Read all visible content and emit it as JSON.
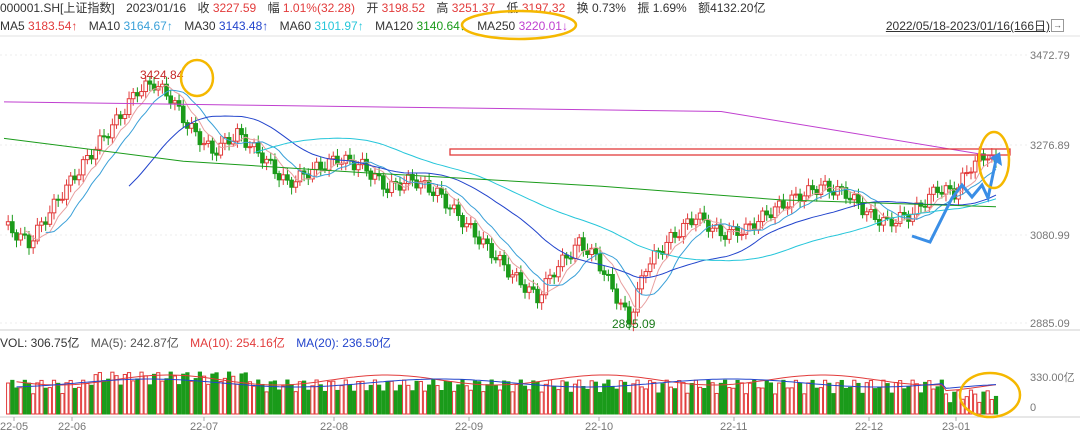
{
  "header": {
    "code": "000001.SH[上证指数]",
    "date": "2023/01/16",
    "close_label": "收",
    "close_value": "3227.59",
    "change_label": "幅",
    "change_value": "1.01%(32.28)",
    "open_label": "开",
    "open_value": "3198.52",
    "high_label": "高",
    "high_value": "3251.37",
    "low_label": "低",
    "low_value": "3197.32",
    "turnover_label": "换",
    "turnover_value": "0.73%",
    "amplitude_label": "振",
    "amplitude_value": "1.69%",
    "amount_label": "额",
    "amount_value": "4132.20亿"
  },
  "ma": [
    {
      "label": "MA5",
      "value": "3183.54↑",
      "color": "#e23b3b"
    },
    {
      "label": "MA10",
      "value": "3164.67↑",
      "color": "#3aa0d8"
    },
    {
      "label": "MA30",
      "value": "3143.48↑",
      "color": "#2244cc"
    },
    {
      "label": "MA60",
      "value": "3101.97↑",
      "color": "#26c6da"
    },
    {
      "label": "MA120",
      "value": "3140.64↓",
      "color": "#1a9b1a"
    },
    {
      "label": "MA250",
      "value": "3220.01↓",
      "color": "#c040d0"
    }
  ],
  "range_text": "2022/05/18-2023/01/16(166日)",
  "range_arrow": "→",
  "price_axis": [
    "3472.79",
    "3276.89",
    "3080.99",
    "2885.09"
  ],
  "annotations": {
    "high": "3424.84",
    "low": "2885.09"
  },
  "volume": {
    "label": "VOL: 306.75亿",
    "ma5": "MA(5): 242.87亿",
    "ma10": "MA(10): 254.16亿",
    "ma20": "MA(20): 236.50亿",
    "axis": [
      "330.00亿",
      "0"
    ]
  },
  "months": [
    "22-05",
    "22-06",
    "22-07",
    "22-08",
    "22-09",
    "22-10",
    "22-11",
    "22-12",
    "23-01"
  ],
  "colors": {
    "up": "#e23b3b",
    "down": "#1a9b1a",
    "highlight": "#f5b800",
    "arrow": "#3a8ee6"
  },
  "chart_data": {
    "type": "candlestick",
    "ma250_path": [
      [
        0,
        3370
      ],
      [
        40,
        3363
      ],
      [
        80,
        3356
      ],
      [
        120,
        3349
      ],
      [
        166,
        3250
      ]
    ],
    "ma120_path": [
      [
        0,
        3290
      ],
      [
        30,
        3240
      ],
      [
        60,
        3215
      ],
      [
        80,
        3200
      ],
      [
        100,
        3185
      ],
      [
        130,
        3155
      ],
      [
        166,
        3140
      ]
    ],
    "resistance": 3255
  }
}
